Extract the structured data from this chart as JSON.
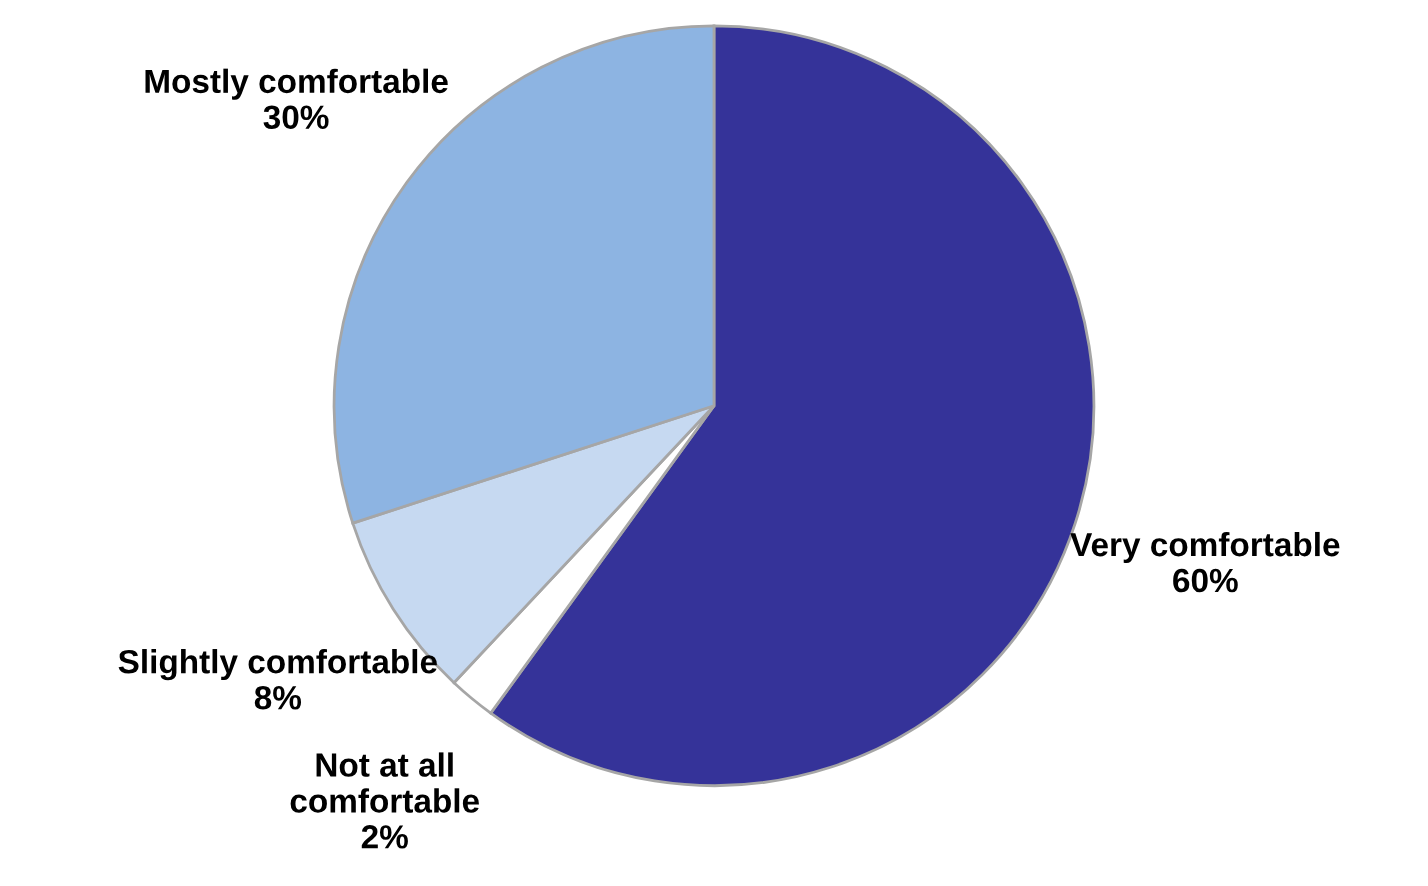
{
  "chart_data": {
    "type": "pie",
    "categories": [
      "Very comfortable",
      "Not at all\ncomfortable",
      "Slightly comfortable",
      "Mostly comfortable"
    ],
    "values": [
      60,
      2,
      8,
      30
    ],
    "value_labels": [
      "60%",
      "2%",
      "8%",
      "30%"
    ],
    "colors": [
      "#353399",
      "#ffffff",
      "#c6d9f1",
      "#8db4e2"
    ]
  }
}
